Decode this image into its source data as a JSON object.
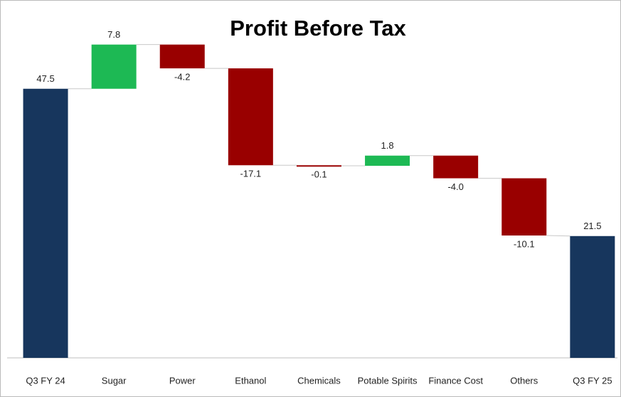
{
  "chart_data": {
    "type": "waterfall",
    "title": "Profit Before Tax",
    "categories": [
      "Q3 FY 24",
      "Sugar",
      "Power",
      "Ethanol",
      "Chemicals",
      "Potable Spirits",
      "Finance Cost",
      "Others",
      "Q3 FY 25"
    ],
    "values": [
      47.5,
      7.8,
      -4.2,
      -17.1,
      -0.1,
      1.8,
      -4.0,
      -10.1,
      21.5
    ],
    "value_labels": [
      "47.5",
      "7.8",
      "-4.2",
      "-17.1",
      "-0.1",
      "1.8",
      "-4.0",
      "-10.1",
      "21.5"
    ],
    "is_total": [
      true,
      false,
      false,
      false,
      false,
      false,
      false,
      false,
      true
    ],
    "colors": {
      "total": "#17365d",
      "increase": "#1db954",
      "decrease": "#990000"
    },
    "ylim": [
      0,
      59.4
    ]
  }
}
